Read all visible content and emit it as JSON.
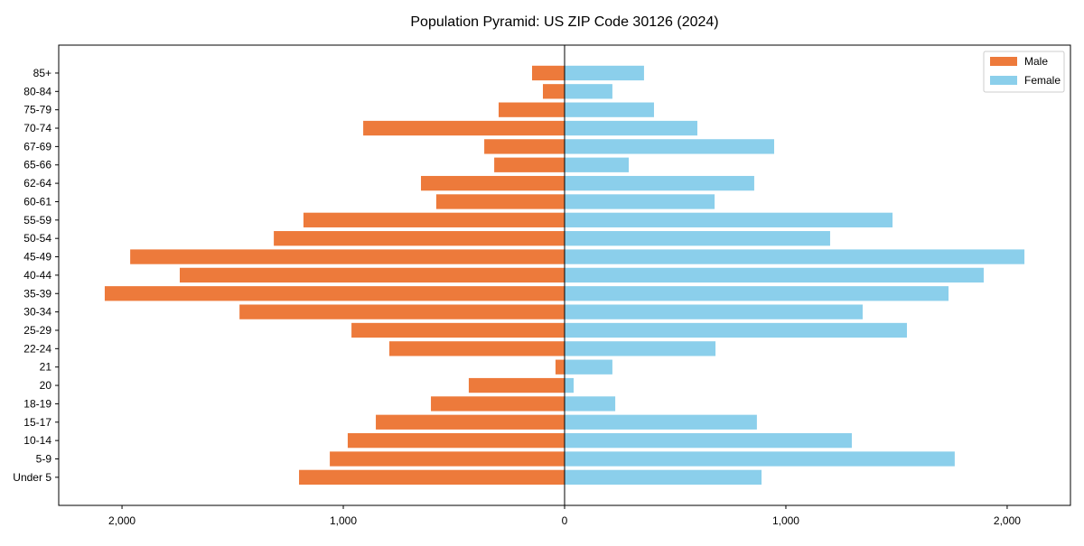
{
  "chart_data": {
    "type": "bar",
    "orientation": "horizontal-pyramid",
    "title": "Population Pyramid: US ZIP Code 30126 (2024)",
    "xlabel": "",
    "ylabel": "",
    "xlim": [
      -2286,
      2286
    ],
    "xticks": [
      -2000,
      -1000,
      0,
      1000,
      2000
    ],
    "xtick_labels": [
      "2,000",
      "1,000",
      "0",
      "1,000",
      "2,000"
    ],
    "categories": [
      "85+",
      "80-84",
      "75-79",
      "70-74",
      "67-69",
      "65-66",
      "62-64",
      "60-61",
      "55-59",
      "50-54",
      "45-49",
      "40-44",
      "35-39",
      "30-34",
      "25-29",
      "22-24",
      "21",
      "20",
      "18-19",
      "15-17",
      "10-14",
      "5-9",
      "Under 5"
    ],
    "series": [
      {
        "name": "Male",
        "color": "#ED7A3B",
        "values": [
          147,
          98,
          298,
          910,
          363,
          318,
          649,
          580,
          1180,
          1314,
          1963,
          1739,
          2078,
          1469,
          963,
          792,
          41,
          433,
          604,
          853,
          980,
          1061,
          1200
        ]
      },
      {
        "name": "Female",
        "color": "#8BCFEB",
        "values": [
          359,
          216,
          404,
          600,
          947,
          290,
          857,
          678,
          1482,
          1200,
          2078,
          1894,
          1735,
          1347,
          1547,
          682,
          216,
          41,
          229,
          869,
          1298,
          1763,
          890
        ]
      }
    ],
    "legend": {
      "placement": "top-right",
      "entries": [
        "Male",
        "Female"
      ]
    },
    "grid": false
  }
}
